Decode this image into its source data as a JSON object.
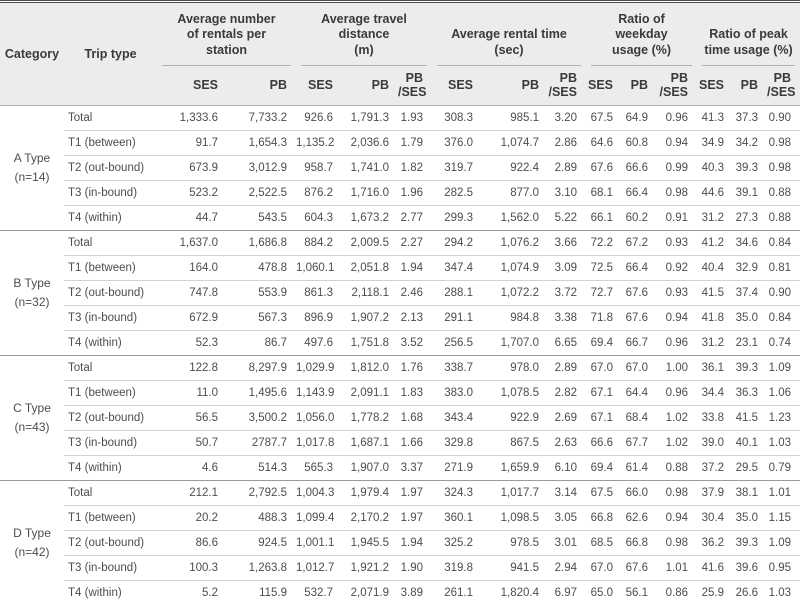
{
  "table": {
    "category_header": "Category",
    "trip_type_header": "Trip type",
    "groups": [
      {
        "label": "Average number\nof rentals per\nstation",
        "sub": [
          "SES",
          "PB"
        ]
      },
      {
        "label": "Average travel distance\n(m)",
        "sub": [
          "SES",
          "PB",
          "PB\n/SES"
        ]
      },
      {
        "label": "Average rental time\n(sec)",
        "sub": [
          "SES",
          "PB",
          "PB\n/SES"
        ]
      },
      {
        "label": "Ratio of weekday\nusage (%)",
        "sub": [
          "SES",
          "PB",
          "PB\n/SES"
        ]
      },
      {
        "label": "Ratio of peak\ntime usage (%)",
        "sub": [
          "SES",
          "PB",
          "PB\n/SES"
        ]
      }
    ],
    "value_keys": [
      "rentals-ses",
      "rentals-pb",
      "distance-ses",
      "distance-pb",
      "distance-pb-ses",
      "time-ses",
      "time-pb",
      "time-pb-ses",
      "weekday-ses",
      "weekday-pb",
      "weekday-pb-ses",
      "peak-ses",
      "peak-pb",
      "peak-pb-ses"
    ],
    "categories": [
      {
        "label": "A Type\n(n=14)",
        "rows": [
          {
            "trip_type": "Total",
            "values": [
              "1,333.6",
              "7,733.2",
              "926.6",
              "1,791.3",
              "1.93",
              "308.3",
              "985.1",
              "3.20",
              "67.5",
              "64.9",
              "0.96",
              "41.3",
              "37.3",
              "0.90"
            ]
          },
          {
            "trip_type": "T1 (between)",
            "values": [
              "91.7",
              "1,654.3",
              "1,135.2",
              "2,036.6",
              "1.79",
              "376.0",
              "1,074.7",
              "2.86",
              "64.6",
              "60.8",
              "0.94",
              "34.9",
              "34.2",
              "0.98"
            ]
          },
          {
            "trip_type": "T2 (out-bound)",
            "values": [
              "673.9",
              "3,012.9",
              "958.7",
              "1,741.0",
              "1.82",
              "319.7",
              "922.4",
              "2.89",
              "67.6",
              "66.6",
              "0.99",
              "40.3",
              "39.3",
              "0.98"
            ]
          },
          {
            "trip_type": "T3 (in-bound)",
            "values": [
              "523.2",
              "2,522.5",
              "876.2",
              "1,716.0",
              "1.96",
              "282.5",
              "877.0",
              "3.10",
              "68.1",
              "66.4",
              "0.98",
              "44.6",
              "39.1",
              "0.88"
            ]
          },
          {
            "trip_type": "T4 (within)",
            "values": [
              "44.7",
              "543.5",
              "604.3",
              "1,673.2",
              "2.77",
              "299.3",
              "1,562.0",
              "5.22",
              "66.1",
              "60.2",
              "0.91",
              "31.2",
              "27.3",
              "0.88"
            ]
          }
        ]
      },
      {
        "label": "B Type\n(n=32)",
        "rows": [
          {
            "trip_type": "Total",
            "values": [
              "1,637.0",
              "1,686.8",
              "884.2",
              "2,009.5",
              "2.27",
              "294.2",
              "1,076.2",
              "3.66",
              "72.2",
              "67.2",
              "0.93",
              "41.2",
              "34.6",
              "0.84"
            ]
          },
          {
            "trip_type": "T1 (between)",
            "values": [
              "164.0",
              "478.8",
              "1,060.1",
              "2,051.8",
              "1.94",
              "347.4",
              "1,074.9",
              "3.09",
              "72.5",
              "66.4",
              "0.92",
              "40.4",
              "32.9",
              "0.81"
            ]
          },
          {
            "trip_type": "T2 (out-bound)",
            "values": [
              "747.8",
              "553.9",
              "861.3",
              "2,118.1",
              "2.46",
              "288.1",
              "1,072.2",
              "3.72",
              "72.7",
              "67.6",
              "0.93",
              "41.5",
              "37.4",
              "0.90"
            ]
          },
          {
            "trip_type": "T3 (in-bound)",
            "values": [
              "672.9",
              "567.3",
              "896.9",
              "1,907.2",
              "2.13",
              "291.1",
              "984.8",
              "3.38",
              "71.8",
              "67.6",
              "0.94",
              "41.8",
              "35.0",
              "0.84"
            ]
          },
          {
            "trip_type": "T4 (within)",
            "values": [
              "52.3",
              "86.7",
              "497.6",
              "1,751.8",
              "3.52",
              "256.5",
              "1,707.0",
              "6.65",
              "69.4",
              "66.7",
              "0.96",
              "31.2",
              "23.1",
              "0.74"
            ]
          }
        ]
      },
      {
        "label": "C Type\n(n=43)",
        "rows": [
          {
            "trip_type": "Total",
            "values": [
              "122.8",
              "8,297.9",
              "1,029.9",
              "1,812.0",
              "1.76",
              "338.7",
              "978.0",
              "2.89",
              "67.0",
              "67.0",
              "1.00",
              "36.1",
              "39.3",
              "1.09"
            ]
          },
          {
            "trip_type": "T1 (between)",
            "values": [
              "11.0",
              "1,495.6",
              "1,143.9",
              "2,091.1",
              "1.83",
              "383.0",
              "1,078.5",
              "2.82",
              "67.1",
              "64.4",
              "0.96",
              "34.4",
              "36.3",
              "1.06"
            ]
          },
          {
            "trip_type": "T2 (out-bound)",
            "values": [
              "56.5",
              "3,500.2",
              "1,056.0",
              "1,778.2",
              "1.68",
              "343.4",
              "922.9",
              "2.69",
              "67.1",
              "68.4",
              "1.02",
              "33.8",
              "41.5",
              "1.23"
            ]
          },
          {
            "trip_type": "T3 (in-bound)",
            "values": [
              "50.7",
              "2787.7",
              "1,017.8",
              "1,687.1",
              "1.66",
              "329.8",
              "867.5",
              "2.63",
              "66.6",
              "67.7",
              "1.02",
              "39.0",
              "40.1",
              "1.03"
            ]
          },
          {
            "trip_type": "T4 (within)",
            "values": [
              "4.6",
              "514.3",
              "565.3",
              "1,907.0",
              "3.37",
              "271.9",
              "1,659.9",
              "6.10",
              "69.4",
              "61.4",
              "0.88",
              "37.2",
              "29.5",
              "0.79"
            ]
          }
        ]
      },
      {
        "label": "D Type\n(n=42)",
        "rows": [
          {
            "trip_type": "Total",
            "values": [
              "212.1",
              "2,792.5",
              "1,004.3",
              "1,979.4",
              "1.97",
              "324.3",
              "1,017.7",
              "3.14",
              "67.5",
              "66.0",
              "0.98",
              "37.9",
              "38.1",
              "1.01"
            ]
          },
          {
            "trip_type": "T1 (between)",
            "values": [
              "20.2",
              "488.3",
              "1,099.4",
              "2,170.2",
              "1.97",
              "360.1",
              "1,098.5",
              "3.05",
              "66.8",
              "62.6",
              "0.94",
              "30.4",
              "35.0",
              "1.15"
            ]
          },
          {
            "trip_type": "T2 (out-bound)",
            "values": [
              "86.6",
              "924.5",
              "1,001.1",
              "1,945.5",
              "1.94",
              "325.2",
              "978.5",
              "3.01",
              "68.5",
              "66.8",
              "0.98",
              "36.2",
              "39.3",
              "1.09"
            ]
          },
          {
            "trip_type": "T3 (in-bound)",
            "values": [
              "100.3",
              "1,263.8",
              "1,012.7",
              "1,921.2",
              "1.90",
              "319.8",
              "941.5",
              "2.94",
              "67.0",
              "67.6",
              "1.01",
              "41.6",
              "39.6",
              "0.95"
            ]
          },
          {
            "trip_type": "T4 (within)",
            "values": [
              "5.2",
              "115.9",
              "532.7",
              "2,071.9",
              "3.89",
              "261.1",
              "1,820.4",
              "6.97",
              "65.0",
              "56.1",
              "0.86",
              "25.9",
              "26.6",
              "1.03"
            ]
          }
        ]
      }
    ],
    "colors": {
      "header_bg": "#ececec",
      "header_text": "#3a3a3a",
      "body_text": "#4d4d4d",
      "row_line": "#d2d2d2",
      "group_line": "#9b9b9b",
      "outer_rule": "#4d4d4d"
    }
  }
}
